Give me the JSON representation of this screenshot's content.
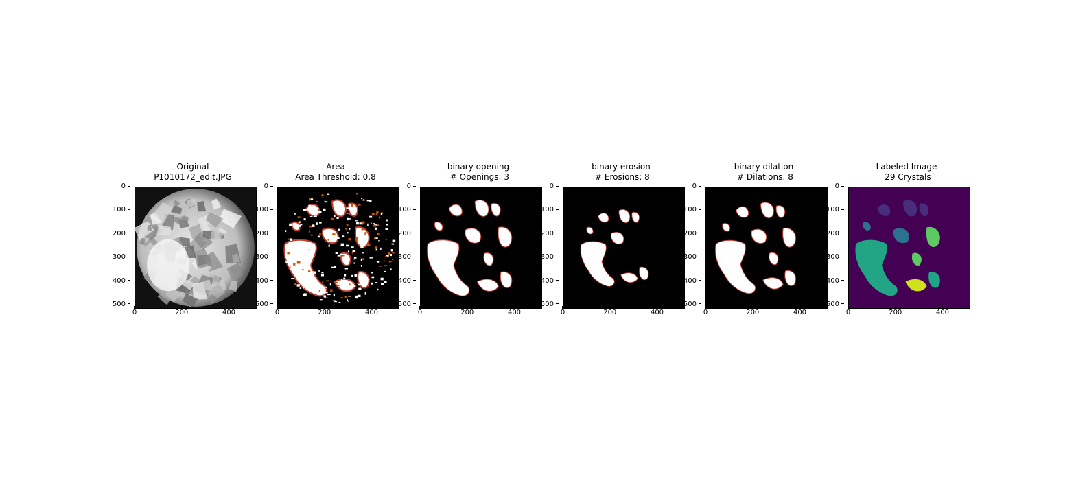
{
  "figure": {
    "background": "#ffffff"
  },
  "chart_data": [
    {
      "type": "image",
      "title_lines": [
        "Original",
        "P1010172_edit.JPG"
      ],
      "colormap": "gray",
      "xticks": [
        "0",
        "200",
        "400"
      ],
      "yticks": [
        "0",
        "100",
        "200",
        "300",
        "400",
        "500"
      ],
      "xlim": [
        0,
        512
      ],
      "ylim": [
        512,
        0
      ],
      "content": "grayscale photo of circular crystal sample"
    },
    {
      "type": "image",
      "title_lines": [
        "Area",
        "Area Threshold: 0.8"
      ],
      "colormap": "hot",
      "xticks": [
        "0",
        "200",
        "400"
      ],
      "yticks": [
        "0",
        "100",
        "200",
        "300",
        "400",
        "500"
      ],
      "xlim": [
        0,
        512
      ],
      "ylim": [
        512,
        0
      ]
    },
    {
      "type": "image",
      "title_lines": [
        "binary opening",
        " # Openings: 3"
      ],
      "colormap": "hot",
      "xticks": [
        "0",
        "200",
        "400"
      ],
      "yticks": [
        "0",
        "100",
        "200",
        "300",
        "400",
        "500"
      ],
      "xlim": [
        0,
        512
      ],
      "ylim": [
        512,
        0
      ]
    },
    {
      "type": "image",
      "title_lines": [
        "binary erosion",
        " # Erosions: 8"
      ],
      "colormap": "hot",
      "xticks": [
        "0",
        "200",
        "400"
      ],
      "yticks": [
        "0",
        "100",
        "200",
        "300",
        "400",
        "500"
      ],
      "xlim": [
        0,
        512
      ],
      "ylim": [
        512,
        0
      ]
    },
    {
      "type": "image",
      "title_lines": [
        "binary dilation",
        " # Dilations: 8"
      ],
      "colormap": "hot",
      "xticks": [
        "0",
        "200",
        "400"
      ],
      "yticks": [
        "0",
        "100",
        "200",
        "300",
        "400",
        "500"
      ],
      "xlim": [
        0,
        512
      ],
      "ylim": [
        512,
        0
      ]
    },
    {
      "type": "image",
      "title_lines": [
        "Labeled Image",
        " 29 Crystals"
      ],
      "colormap": "viridis",
      "xticks": [
        "0",
        "200",
        "400"
      ],
      "yticks": [
        "0",
        "100",
        "200",
        "300",
        "400",
        "500"
      ],
      "xlim": [
        0,
        512
      ],
      "ylim": [
        512,
        0
      ],
      "label_count": 29,
      "colors": {
        "background": "#440154",
        "teal": "#21a585",
        "yellow": "#d0e11c",
        "green": "#5ec962",
        "blue": "#2c728e",
        "navy": "#3b528b",
        "purple": "#472d7b"
      }
    }
  ]
}
